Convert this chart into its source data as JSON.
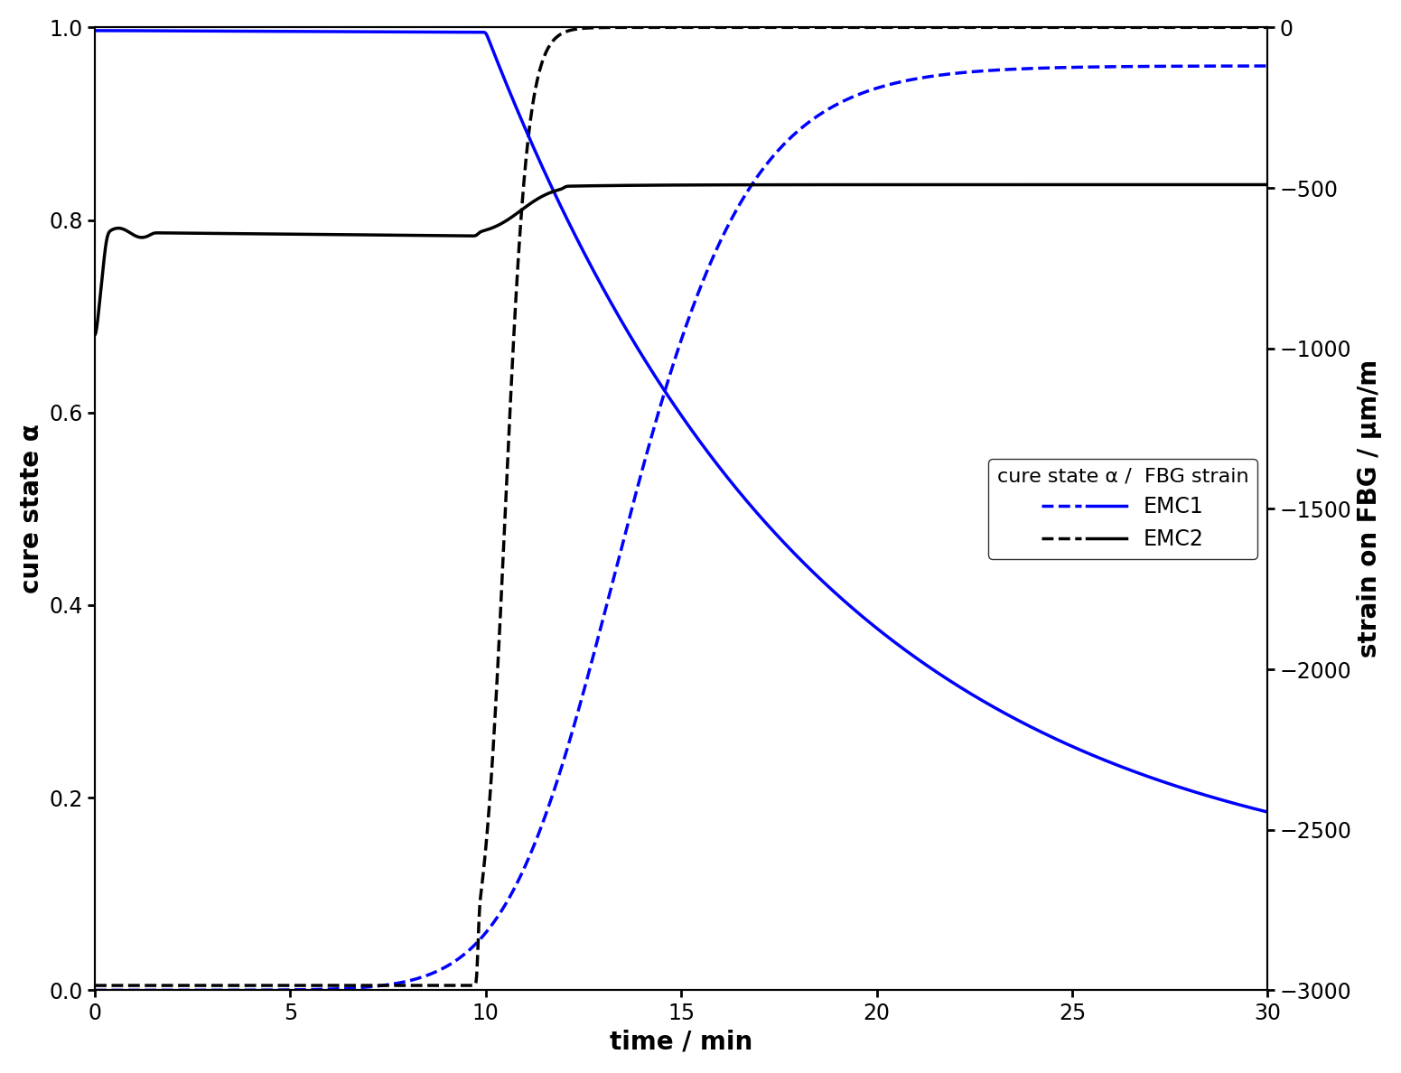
{
  "title": "",
  "xlabel": "time / min",
  "ylabel_left": "cure state α",
  "ylabel_right": "strain on FBG / µm/m",
  "xlim": [
    0,
    30
  ],
  "ylim_left": [
    0.0,
    1.0
  ],
  "ylim_right": [
    -3000,
    0
  ],
  "xticks": [
    0,
    5,
    10,
    15,
    20,
    25,
    30
  ],
  "yticks_left": [
    0.0,
    0.2,
    0.4,
    0.6,
    0.8,
    1.0
  ],
  "yticks_right": [
    -3000,
    -2500,
    -2000,
    -1500,
    -1000,
    -500,
    0
  ],
  "legend_title": "cure state α /  FBG strain",
  "background_color": "#ffffff",
  "line_width": 2.5
}
